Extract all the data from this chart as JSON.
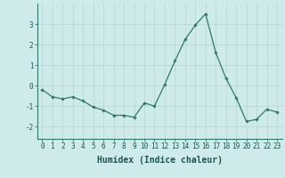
{
  "x": [
    0,
    1,
    2,
    3,
    4,
    5,
    6,
    7,
    8,
    9,
    10,
    11,
    12,
    13,
    14,
    15,
    16,
    17,
    18,
    19,
    20,
    21,
    22,
    23
  ],
  "y": [
    -0.2,
    -0.55,
    -0.65,
    -0.55,
    -0.75,
    -1.05,
    -1.2,
    -1.45,
    -1.45,
    -1.55,
    -0.85,
    -1.0,
    0.05,
    1.2,
    2.25,
    2.95,
    3.5,
    1.6,
    0.35,
    -0.6,
    -1.75,
    -1.65,
    -1.15,
    -1.3
  ],
  "line_color": "#2d7a6e",
  "marker": "D",
  "marker_size": 1.8,
  "line_width": 0.9,
  "bg_color": "#ceeaea",
  "grid_color": "#b8d4d4",
  "xlabel": "Humidex (Indice chaleur)",
  "xlabel_fontsize": 7,
  "tick_fontsize": 5.5,
  "yticks": [
    -2,
    -1,
    0,
    1,
    2,
    3
  ],
  "ylim": [
    -2.6,
    4.0
  ],
  "xlim": [
    -0.5,
    23.5
  ],
  "xticks": [
    0,
    1,
    2,
    3,
    4,
    5,
    6,
    7,
    8,
    9,
    10,
    11,
    12,
    13,
    14,
    15,
    16,
    17,
    18,
    19,
    20,
    21,
    22,
    23
  ]
}
